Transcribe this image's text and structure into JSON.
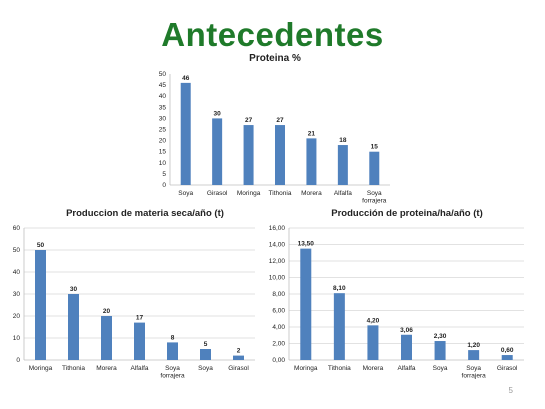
{
  "slide": {
    "title": "Antecedentes",
    "page_number": "5"
  },
  "colors": {
    "bar": "#4f81bd",
    "title": "#1f7a2a",
    "grid": "#d9d9d9"
  },
  "chart_data": [
    {
      "type": "bar",
      "title": "Proteina %",
      "categories": [
        "Soya",
        "Girasol",
        "Moringa",
        "Tithonia",
        "Morera",
        "Alfalfa",
        "Soya forrajera"
      ],
      "values": [
        46,
        30,
        27,
        27,
        21,
        18,
        15
      ],
      "value_labels": [
        "46",
        "30",
        "27",
        "27",
        "21",
        "18",
        "15"
      ],
      "yticks": [
        "0",
        "5",
        "10",
        "15",
        "20",
        "25",
        "30",
        "35",
        "40",
        "45",
        "50"
      ],
      "ylim": [
        0,
        50
      ],
      "grid": false
    },
    {
      "type": "bar",
      "title": "Produccion de materia seca/año (t)",
      "categories": [
        "Moringa",
        "Tithonia",
        "Morera",
        "Alfalfa",
        "Soya forrajera",
        "Soya",
        "Girasol"
      ],
      "values": [
        50,
        30,
        20,
        17,
        8,
        5,
        2
      ],
      "value_labels": [
        "50",
        "30",
        "20",
        "17",
        "8",
        "5",
        "2"
      ],
      "yticks": [
        "0",
        "10",
        "20",
        "30",
        "40",
        "50",
        "60"
      ],
      "ylim": [
        0,
        60
      ],
      "grid": true
    },
    {
      "type": "bar",
      "title": "Producción de proteina/ha/año (t)",
      "categories": [
        "Moringa",
        "Tithonia",
        "Morera",
        "Alfalfa",
        "Soya",
        "Soya forrajera",
        "Girasol"
      ],
      "values": [
        13.5,
        8.1,
        4.2,
        3.06,
        2.3,
        1.2,
        0.6
      ],
      "value_labels": [
        "13,50",
        "8,10",
        "4,20",
        "3,06",
        "2,30",
        "1,20",
        "0,60"
      ],
      "yticks": [
        "0,00",
        "2,00",
        "4,00",
        "6,00",
        "8,00",
        "10,00",
        "12,00",
        "14,00",
        "16,00"
      ],
      "ylim": [
        0,
        16
      ],
      "grid": true
    }
  ]
}
